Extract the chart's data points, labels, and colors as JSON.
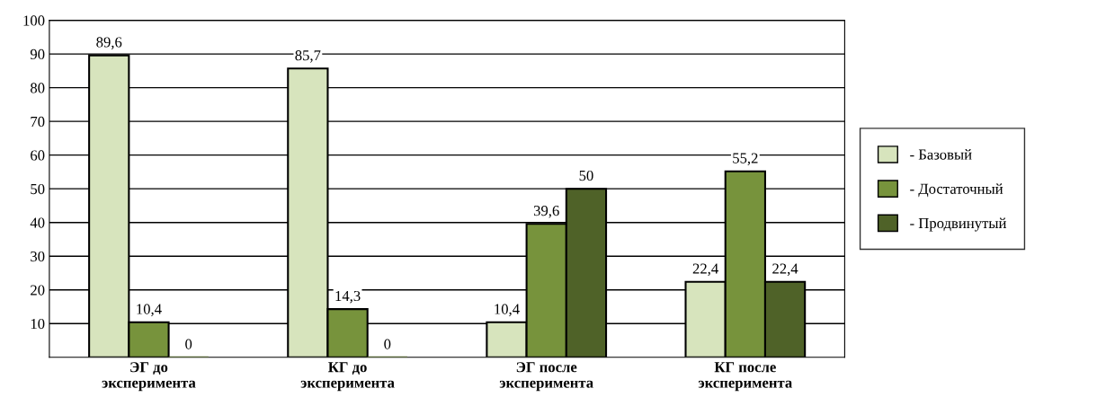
{
  "chart_data": {
    "type": "bar",
    "categories": [
      "ЭГ до\nэксперимента",
      "КГ до\nэксперимента",
      "ЭГ после\nэксперимента",
      "КГ после\nэксперимента"
    ],
    "series": [
      {
        "name": "- Базовый",
        "color": "#d7e4bd",
        "values": [
          89.6,
          85.7,
          10.4,
          22.4
        ],
        "value_labels": [
          "89,6",
          "85,7",
          "10,4",
          "22,4"
        ]
      },
      {
        "name": "- Достаточный",
        "color": "#77933c",
        "values": [
          10.4,
          14.3,
          39.6,
          55.2
        ],
        "value_labels": [
          "10,4",
          "14,3",
          "39,6",
          "55,2"
        ]
      },
      {
        "name": "- Продвинутый",
        "color": "#4f6228",
        "values": [
          0,
          0,
          50,
          22.4
        ],
        "value_labels": [
          "0",
          "0",
          "50",
          "22,4"
        ]
      }
    ],
    "ylim": [
      0,
      100
    ],
    "yticks": [
      10,
      20,
      30,
      40,
      50,
      60,
      70,
      80,
      90,
      100
    ],
    "grid": "y",
    "legend": "right"
  }
}
